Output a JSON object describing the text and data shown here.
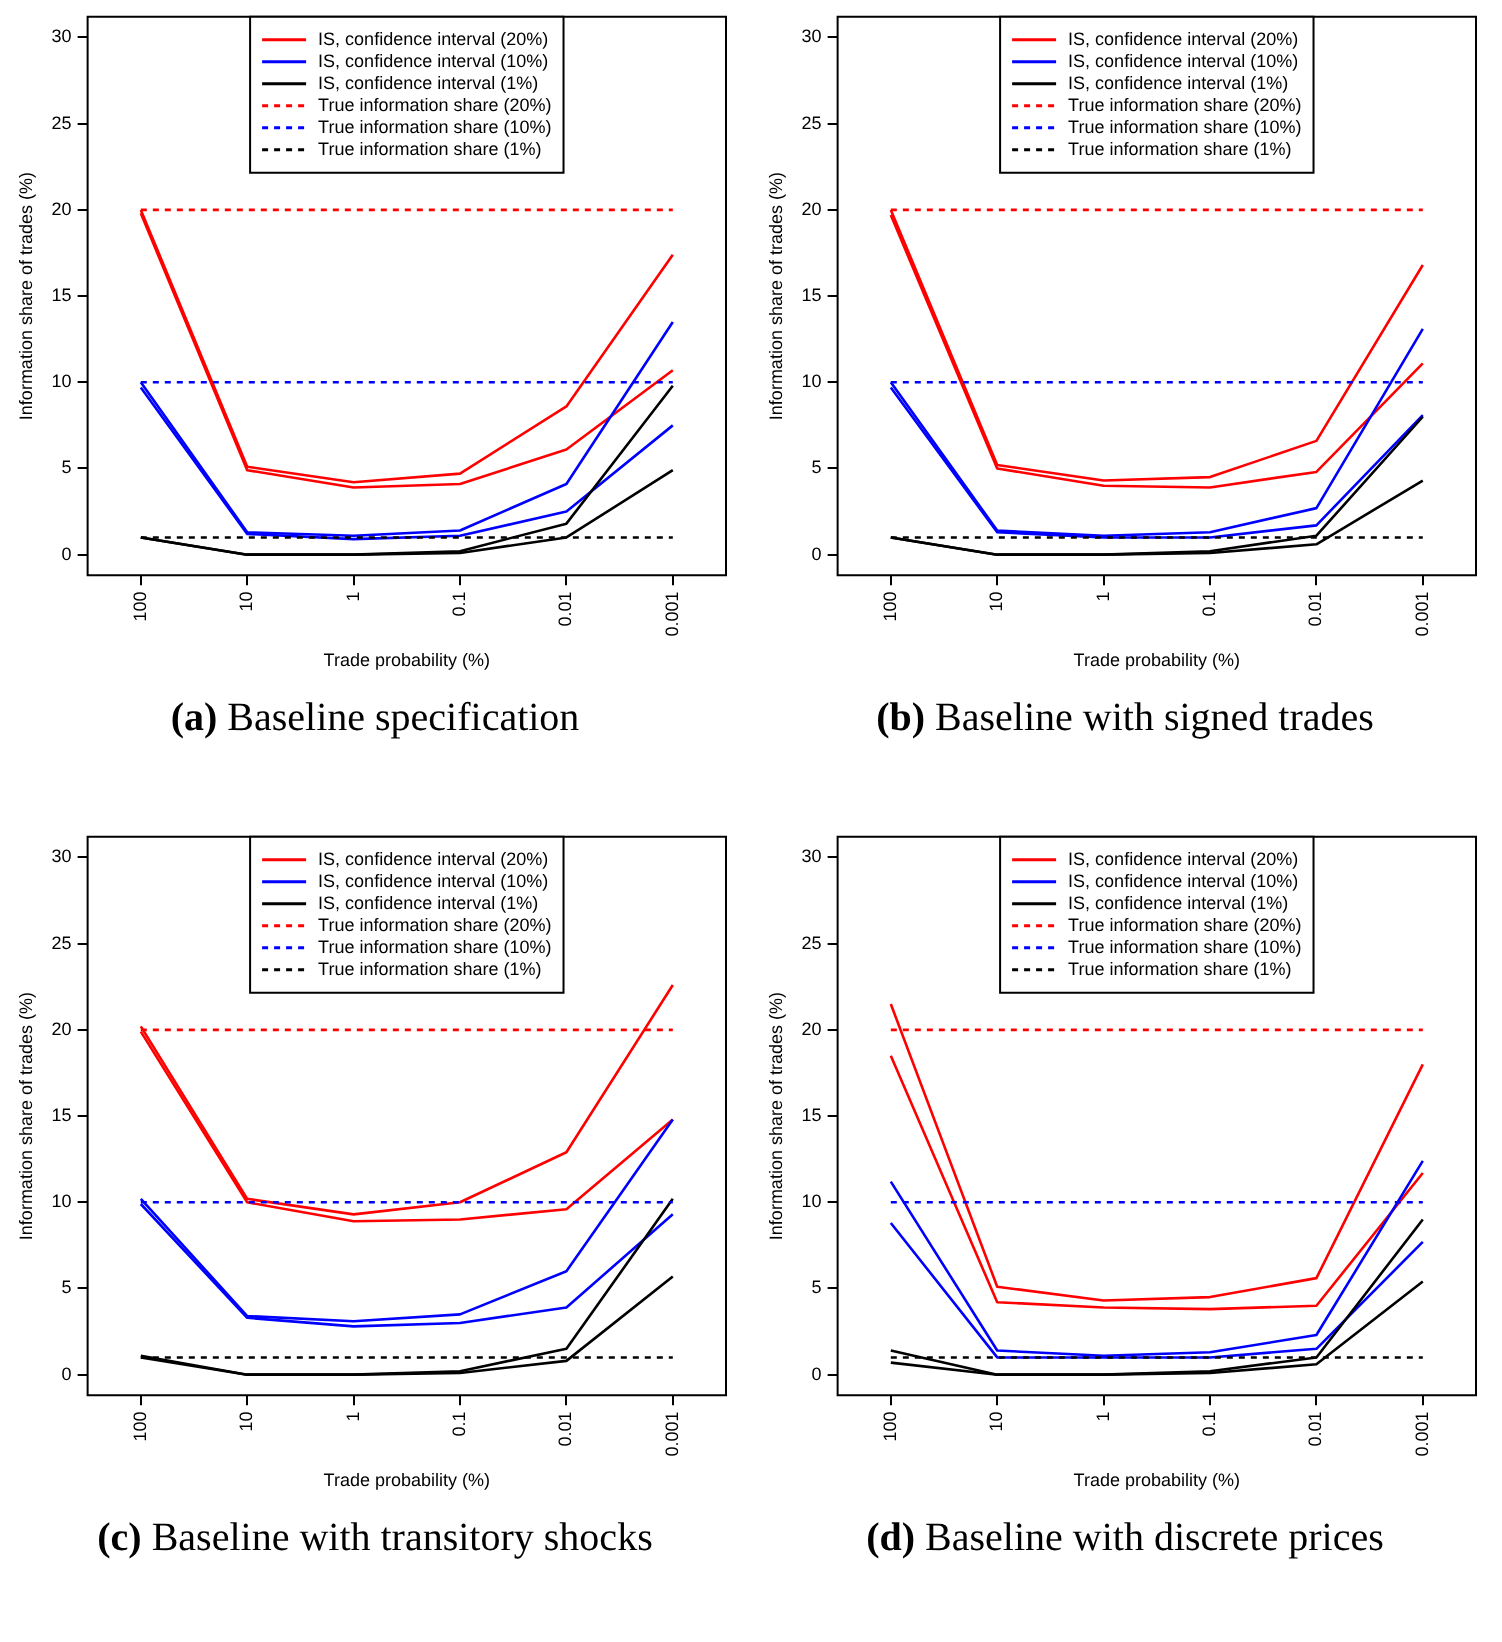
{
  "chart_data": [
    {
      "type": "line",
      "title": "(a) Baseline specification",
      "xlabel": "Trade probability (%)",
      "ylabel": "Information share of trades (%)",
      "categories": [
        "100",
        "10",
        "1",
        "0.1",
        "0.01",
        "0.001"
      ],
      "ylim": [
        -1.2,
        31.2
      ],
      "yticks": [
        0,
        5,
        10,
        15,
        20,
        25,
        30
      ],
      "grid": false,
      "legend": "top",
      "marker": "none",
      "series": [
        {
          "name": "IS, confidence interval (20%)",
          "color": "#ff0000",
          "line_style": "solid",
          "values": [
            20,
            5.1,
            4.2,
            4.7,
            8.6,
            17.4
          ]
        },
        {
          "color": "#ff0000",
          "line_style": "solid",
          "values": [
            19.8,
            4.9,
            3.9,
            4.1,
            6.1,
            10.7
          ]
        },
        {
          "name": "IS, confidence interval (10%)",
          "color": "#0000ff",
          "line_style": "solid",
          "values": [
            10,
            1.3,
            1.1,
            1.4,
            4.1,
            13.5
          ]
        },
        {
          "color": "#0000ff",
          "line_style": "solid",
          "values": [
            9.7,
            1.2,
            0.9,
            1.1,
            2.5,
            7.5
          ]
        },
        {
          "name": "IS, confidence interval (1%)",
          "color": "#000000",
          "line_style": "solid",
          "values": [
            1,
            0,
            0,
            0.2,
            1.8,
            9.8
          ]
        },
        {
          "color": "#000000",
          "line_style": "solid",
          "values": [
            1,
            0,
            0,
            0.1,
            1,
            4.9
          ]
        },
        {
          "name": "True information share (20%)",
          "color": "#ff0000",
          "line_style": "dashed",
          "values": [
            20,
            20,
            20,
            20,
            20,
            20
          ]
        },
        {
          "name": "True information share (10%)",
          "color": "#0000ff",
          "line_style": "dashed",
          "values": [
            10,
            10,
            10,
            10,
            10,
            10
          ]
        },
        {
          "name": "True information share (1%)",
          "color": "#000000",
          "line_style": "dashed",
          "values": [
            1,
            1,
            1,
            1,
            1,
            1
          ]
        }
      ]
    },
    {
      "type": "line",
      "title": "(b) Baseline with signed trades",
      "xlabel": "Trade probability (%)",
      "ylabel": "Information share of trades (%)",
      "categories": [
        "100",
        "10",
        "1",
        "0.1",
        "0.01",
        "0.001"
      ],
      "ylim": [
        -1.2,
        31.2
      ],
      "yticks": [
        0,
        5,
        10,
        15,
        20,
        25,
        30
      ],
      "grid": false,
      "legend": "top",
      "marker": "none",
      "series": [
        {
          "name": "IS, confidence interval (20%)",
          "color": "#ff0000",
          "line_style": "solid",
          "values": [
            20,
            5.2,
            4.3,
            4.5,
            6.6,
            16.8
          ]
        },
        {
          "color": "#ff0000",
          "line_style": "solid",
          "values": [
            19.7,
            5.0,
            4.0,
            3.9,
            4.8,
            11.1
          ]
        },
        {
          "name": "IS, confidence interval (10%)",
          "color": "#0000ff",
          "line_style": "solid",
          "values": [
            10,
            1.4,
            1.1,
            1.3,
            2.7,
            13.1
          ]
        },
        {
          "color": "#0000ff",
          "line_style": "solid",
          "values": [
            9.7,
            1.3,
            1.0,
            1.0,
            1.7,
            8.1
          ]
        },
        {
          "name": "IS, confidence interval (1%)",
          "color": "#000000",
          "line_style": "solid",
          "values": [
            1,
            0,
            0,
            0.2,
            1.1,
            8.0
          ]
        },
        {
          "color": "#000000",
          "line_style": "solid",
          "values": [
            1,
            0,
            0,
            0.1,
            0.6,
            4.3
          ]
        },
        {
          "name": "True information share (20%)",
          "color": "#ff0000",
          "line_style": "dashed",
          "values": [
            20,
            20,
            20,
            20,
            20,
            20
          ]
        },
        {
          "name": "True information share (10%)",
          "color": "#0000ff",
          "line_style": "dashed",
          "values": [
            10,
            10,
            10,
            10,
            10,
            10
          ]
        },
        {
          "name": "True information share (1%)",
          "color": "#000000",
          "line_style": "dashed",
          "values": [
            1,
            1,
            1,
            1,
            1,
            1
          ]
        }
      ]
    },
    {
      "type": "line",
      "title": "(c) Baseline with transitory shocks",
      "xlabel": "Trade probability (%)",
      "ylabel": "Information share of trades (%)",
      "categories": [
        "100",
        "10",
        "1",
        "0.1",
        "0.01",
        "0.001"
      ],
      "ylim": [
        -1.2,
        31.2
      ],
      "yticks": [
        0,
        5,
        10,
        15,
        20,
        25,
        30
      ],
      "grid": false,
      "legend": "top",
      "marker": "none",
      "series": [
        {
          "name": "IS, confidence interval (20%)",
          "color": "#ff0000",
          "line_style": "solid",
          "values": [
            20.2,
            10.2,
            9.3,
            10,
            12.9,
            22.6
          ]
        },
        {
          "color": "#ff0000",
          "line_style": "solid",
          "values": [
            19.9,
            10.0,
            8.9,
            9.0,
            9.6,
            14.8
          ]
        },
        {
          "name": "IS, confidence interval (10%)",
          "color": "#0000ff",
          "line_style": "solid",
          "values": [
            10.2,
            3.4,
            3.1,
            3.5,
            6.0,
            14.8
          ]
        },
        {
          "color": "#0000ff",
          "line_style": "solid",
          "values": [
            9.9,
            3.3,
            2.8,
            3.0,
            3.9,
            9.3
          ]
        },
        {
          "name": "IS, confidence interval (1%)",
          "color": "#000000",
          "line_style": "solid",
          "values": [
            1.1,
            0,
            0,
            0.2,
            1.5,
            10.2
          ]
        },
        {
          "color": "#000000",
          "line_style": "solid",
          "values": [
            1.0,
            0,
            0,
            0.1,
            0.8,
            5.7
          ]
        },
        {
          "name": "True information share (20%)",
          "color": "#ff0000",
          "line_style": "dashed",
          "values": [
            20,
            20,
            20,
            20,
            20,
            20
          ]
        },
        {
          "name": "True information share (10%)",
          "color": "#0000ff",
          "line_style": "dashed",
          "values": [
            10,
            10,
            10,
            10,
            10,
            10
          ]
        },
        {
          "name": "True information share (1%)",
          "color": "#000000",
          "line_style": "dashed",
          "values": [
            1,
            1,
            1,
            1,
            1,
            1
          ]
        }
      ]
    },
    {
      "type": "line",
      "title": "(d) Baseline with discrete prices",
      "xlabel": "Trade probability (%)",
      "ylabel": "Information share of trades (%)",
      "categories": [
        "100",
        "10",
        "1",
        "0.1",
        "0.01",
        "0.001"
      ],
      "ylim": [
        -1.2,
        31.2
      ],
      "yticks": [
        0,
        5,
        10,
        15,
        20,
        25,
        30
      ],
      "grid": false,
      "legend": "top",
      "marker": "none",
      "series": [
        {
          "name": "IS, confidence interval (20%)",
          "color": "#ff0000",
          "line_style": "solid",
          "values": [
            21.5,
            5.1,
            4.3,
            4.5,
            5.6,
            18.0
          ]
        },
        {
          "color": "#ff0000",
          "line_style": "solid",
          "values": [
            18.5,
            4.2,
            3.9,
            3.8,
            4.0,
            11.7
          ]
        },
        {
          "name": "IS, confidence interval (10%)",
          "color": "#0000ff",
          "line_style": "solid",
          "values": [
            11.2,
            1.4,
            1.1,
            1.3,
            2.3,
            12.4
          ]
        },
        {
          "color": "#0000ff",
          "line_style": "solid",
          "values": [
            8.8,
            1.0,
            1.0,
            1.0,
            1.5,
            7.7
          ]
        },
        {
          "name": "IS, confidence interval (1%)",
          "color": "#000000",
          "line_style": "solid",
          "values": [
            1.4,
            0,
            0,
            0.2,
            1.0,
            9.0
          ]
        },
        {
          "color": "#000000",
          "line_style": "solid",
          "values": [
            0.7,
            0,
            0,
            0.1,
            0.6,
            5.4
          ]
        },
        {
          "name": "True information share (20%)",
          "color": "#ff0000",
          "line_style": "dashed",
          "values": [
            20,
            20,
            20,
            20,
            20,
            20
          ]
        },
        {
          "name": "True information share (10%)",
          "color": "#0000ff",
          "line_style": "dashed",
          "values": [
            10,
            10,
            10,
            10,
            10,
            10
          ]
        },
        {
          "name": "True information share (1%)",
          "color": "#000000",
          "line_style": "dashed",
          "values": [
            1,
            1,
            1,
            1,
            1,
            1
          ]
        }
      ]
    }
  ]
}
